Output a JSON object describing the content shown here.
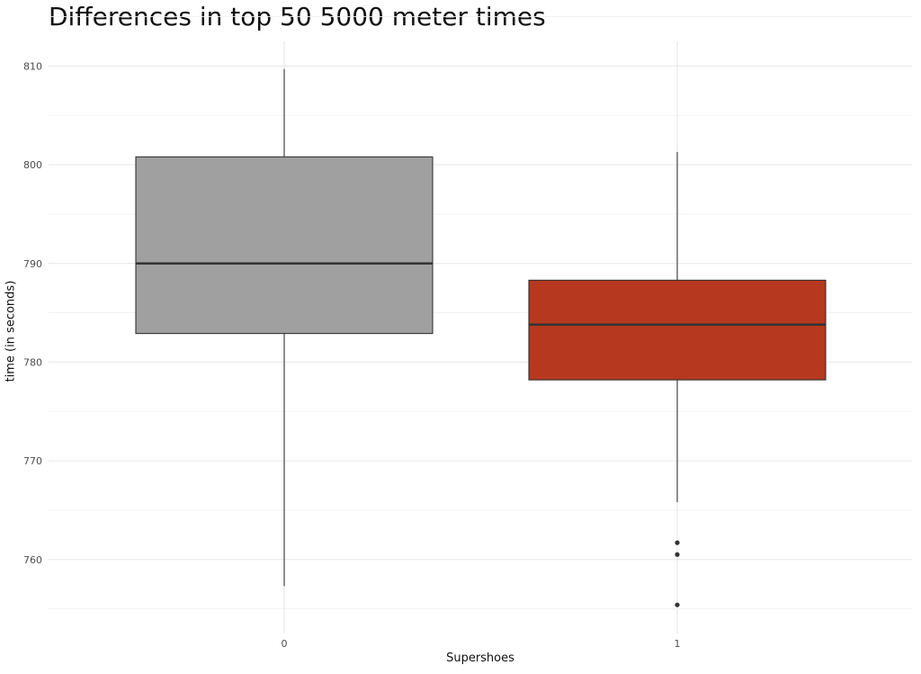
{
  "chart_data": {
    "type": "boxplot",
    "title": "Differences in top 50 5000 meter times",
    "xlabel": "Supershoes",
    "ylabel": "time (in seconds)",
    "categories": [
      "0",
      "1"
    ],
    "ylim": [
      752.5,
      812.5
    ],
    "yticks": [
      760,
      770,
      780,
      790,
      800,
      810
    ],
    "grid": true,
    "boxes": [
      {
        "category": "0",
        "lower_whisker": 757.3,
        "q1": 782.9,
        "median": 790.0,
        "q3": 800.8,
        "upper_whisker": 809.7,
        "outliers": [],
        "color": "#a0a0a0"
      },
      {
        "category": "1",
        "lower_whisker": 765.8,
        "q1": 778.2,
        "median": 783.8,
        "q3": 788.3,
        "upper_whisker": 801.3,
        "outliers": [
          761.7,
          760.5,
          755.4
        ],
        "color": "#b5381f"
      }
    ]
  }
}
